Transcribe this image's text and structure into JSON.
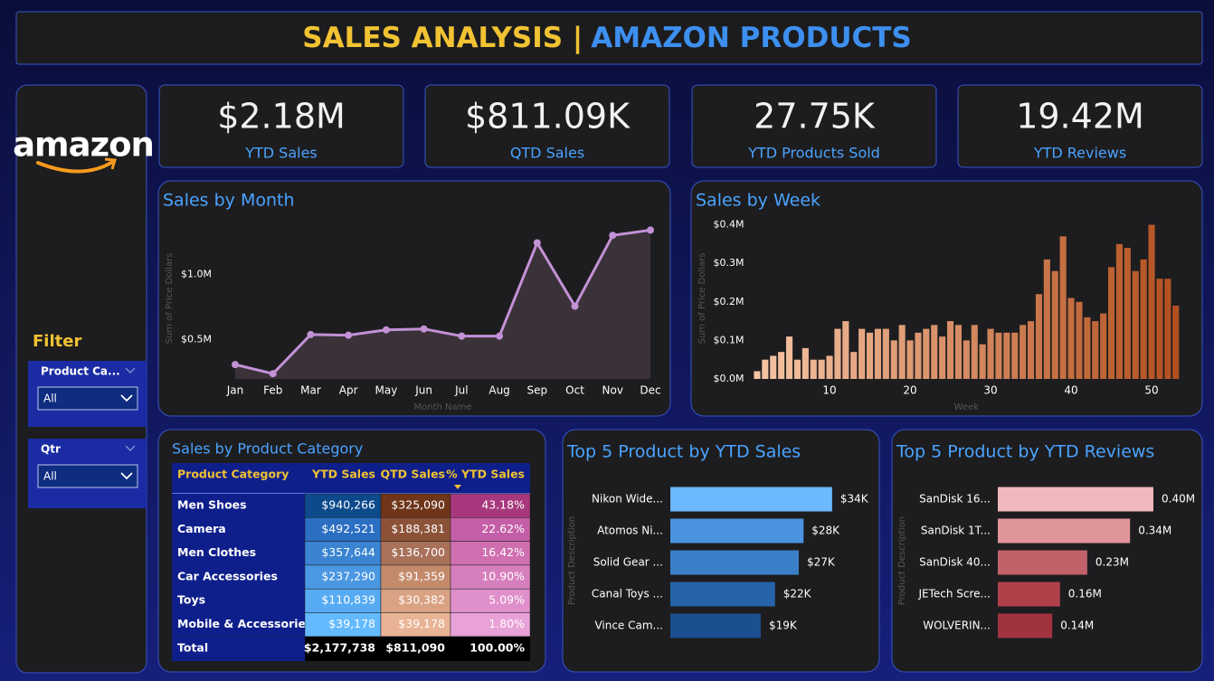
{
  "header": {
    "title_part1": "SALES ANALYSIS |",
    "title_part2": "AMAZON PRODUCTS"
  },
  "sidebar": {
    "logo": "amazon",
    "filter_title": "Filter",
    "filters": [
      {
        "label": "Product Ca...",
        "value": "All"
      },
      {
        "label": "Qtr",
        "value": "All"
      }
    ]
  },
  "kpis": [
    {
      "value": "$2.18M",
      "label": "YTD Sales"
    },
    {
      "value": "$811.09K",
      "label": "QTD Sales"
    },
    {
      "value": "27.75K",
      "label": "YTD Products Sold"
    },
    {
      "value": "19.42M",
      "label": "YTD Reviews"
    }
  ],
  "table": {
    "title": "Sales by Product Category",
    "columns": [
      "Product Category",
      "YTD Sales",
      "QTD Sales",
      "% YTD Sales"
    ],
    "rows": [
      [
        "Men Shoes",
        "$940,266",
        "$325,090",
        "43.18%"
      ],
      [
        "Camera",
        "$492,521",
        "$188,381",
        "22.62%"
      ],
      [
        "Men Clothes",
        "$357,644",
        "$136,700",
        "16.42%"
      ],
      [
        "Car Accessories",
        "$237,290",
        "$91,359",
        "10.90%"
      ],
      [
        "Toys",
        "$110,839",
        "$30,382",
        "5.09%"
      ],
      [
        "Mobile & Accessories",
        "$39,178",
        "$39,178",
        "1.80%"
      ]
    ],
    "total": [
      "Total",
      "$2,177,738",
      "$811,090",
      "100.00%"
    ],
    "cell_colors": [
      [
        "#0c4a8c",
        "#2b6fc2",
        "#3a84d2",
        "#4a97e2",
        "#57abf2",
        "#63baff"
      ],
      [
        "#6e3519",
        "#8c5238",
        "#a9705a",
        "#c48b6b",
        "#d9a283",
        "#e9b395"
      ],
      [
        "#a8387e",
        "#c45ea6",
        "#cf6fb0",
        "#d77fbd",
        "#df90ca",
        "#e8a2d8"
      ]
    ]
  },
  "chart_data": [
    {
      "type": "line",
      "title": "Sales by Month",
      "x_label": "Month Name",
      "y_label": "Sum of Price Dollars",
      "color": "#c391d6",
      "area_color": "#3b3239",
      "categories": [
        "Jan",
        "Feb",
        "Mar",
        "Apr",
        "May",
        "Jun",
        "Jul",
        "Aug",
        "Sep",
        "Oct",
        "Nov",
        "Dec"
      ],
      "values": [
        0.31,
        0.24,
        0.54,
        0.535,
        0.576,
        0.583,
        0.528,
        0.528,
        1.243,
        0.757,
        1.3,
        1.34
      ],
      "ylim": [
        0.2,
        1.44
      ],
      "yticks": [
        {
          "value": 0.5,
          "label": "$0.5M"
        },
        {
          "value": 1,
          "label": "$1.0M"
        }
      ]
    },
    {
      "type": "bar",
      "title": "Sales by Week",
      "x_label": "Week",
      "y_label": "Sum of Price Dollars",
      "color_range": [
        "#f6c4a4",
        "#b3501f"
      ],
      "x": [
        1,
        2,
        3,
        4,
        5,
        6,
        7,
        8,
        9,
        10,
        11,
        12,
        13,
        14,
        15,
        16,
        17,
        18,
        19,
        20,
        21,
        22,
        23,
        24,
        25,
        26,
        27,
        28,
        29,
        30,
        31,
        32,
        33,
        34,
        35,
        36,
        37,
        38,
        39,
        40,
        41,
        42,
        43,
        44,
        45,
        46,
        47,
        48,
        49,
        50,
        51,
        52,
        53
      ],
      "values": [
        0.02,
        0.05,
        0.06,
        0.07,
        0.11,
        0.05,
        0.08,
        0.05,
        0.05,
        0.06,
        0.13,
        0.15,
        0.07,
        0.13,
        0.12,
        0.13,
        0.13,
        0.1,
        0.14,
        0.1,
        0.12,
        0.13,
        0.14,
        0.11,
        0.15,
        0.14,
        0.1,
        0.14,
        0.09,
        0.13,
        0.12,
        0.12,
        0.12,
        0.14,
        0.15,
        0.22,
        0.31,
        0.28,
        0.37,
        0.21,
        0.2,
        0.16,
        0.15,
        0.17,
        0.29,
        0.35,
        0.34,
        0.28,
        0.31,
        0.4,
        0.26,
        0.26,
        0.19
      ],
      "xlim": [
        0.5,
        53.5
      ],
      "xticks": [
        10,
        20,
        30,
        40,
        50
      ],
      "ylim": [
        0,
        0.42
      ],
      "yticks": [
        {
          "value": 0,
          "label": "$0.0M"
        },
        {
          "value": 0.1,
          "label": "$0.1M"
        },
        {
          "value": 0.2,
          "label": "$0.2M"
        },
        {
          "value": 0.3,
          "label": "$0.3M"
        },
        {
          "value": 0.4,
          "label": "$0.4M"
        }
      ]
    },
    {
      "type": "hbar",
      "title": "Top 5 Product by YTD Sales",
      "y_label": "Product Description",
      "categories": [
        "Nikon Wide...",
        "Atomos Ni...",
        "Solid Gear ...",
        "Canal Toys ...",
        "Vince Cam..."
      ],
      "values": [
        34,
        28,
        27,
        22,
        19
      ],
      "value_labels": [
        "$34K",
        "$28K",
        "$27K",
        "$22K",
        "$19K"
      ],
      "colors": [
        "#6cb9ff",
        "#4a93e0",
        "#3b7fc9",
        "#2564a9",
        "#1b4f8f"
      ]
    },
    {
      "type": "hbar",
      "title": "Top 5 Product by YTD Reviews",
      "y_label": "Product Description",
      "categories": [
        "SanDisk 16...",
        "SanDisk 1T...",
        "SanDisk 40...",
        "JETech Scre...",
        "WOLVERIN..."
      ],
      "values": [
        0.4,
        0.34,
        0.23,
        0.16,
        0.14
      ],
      "value_labels": [
        "0.40M",
        "0.34M",
        "0.23M",
        "0.16M",
        "0.14M"
      ],
      "colors": [
        "#f0b8bc",
        "#e0959b",
        "#c1626a",
        "#b0414b",
        "#a13240"
      ]
    }
  ]
}
